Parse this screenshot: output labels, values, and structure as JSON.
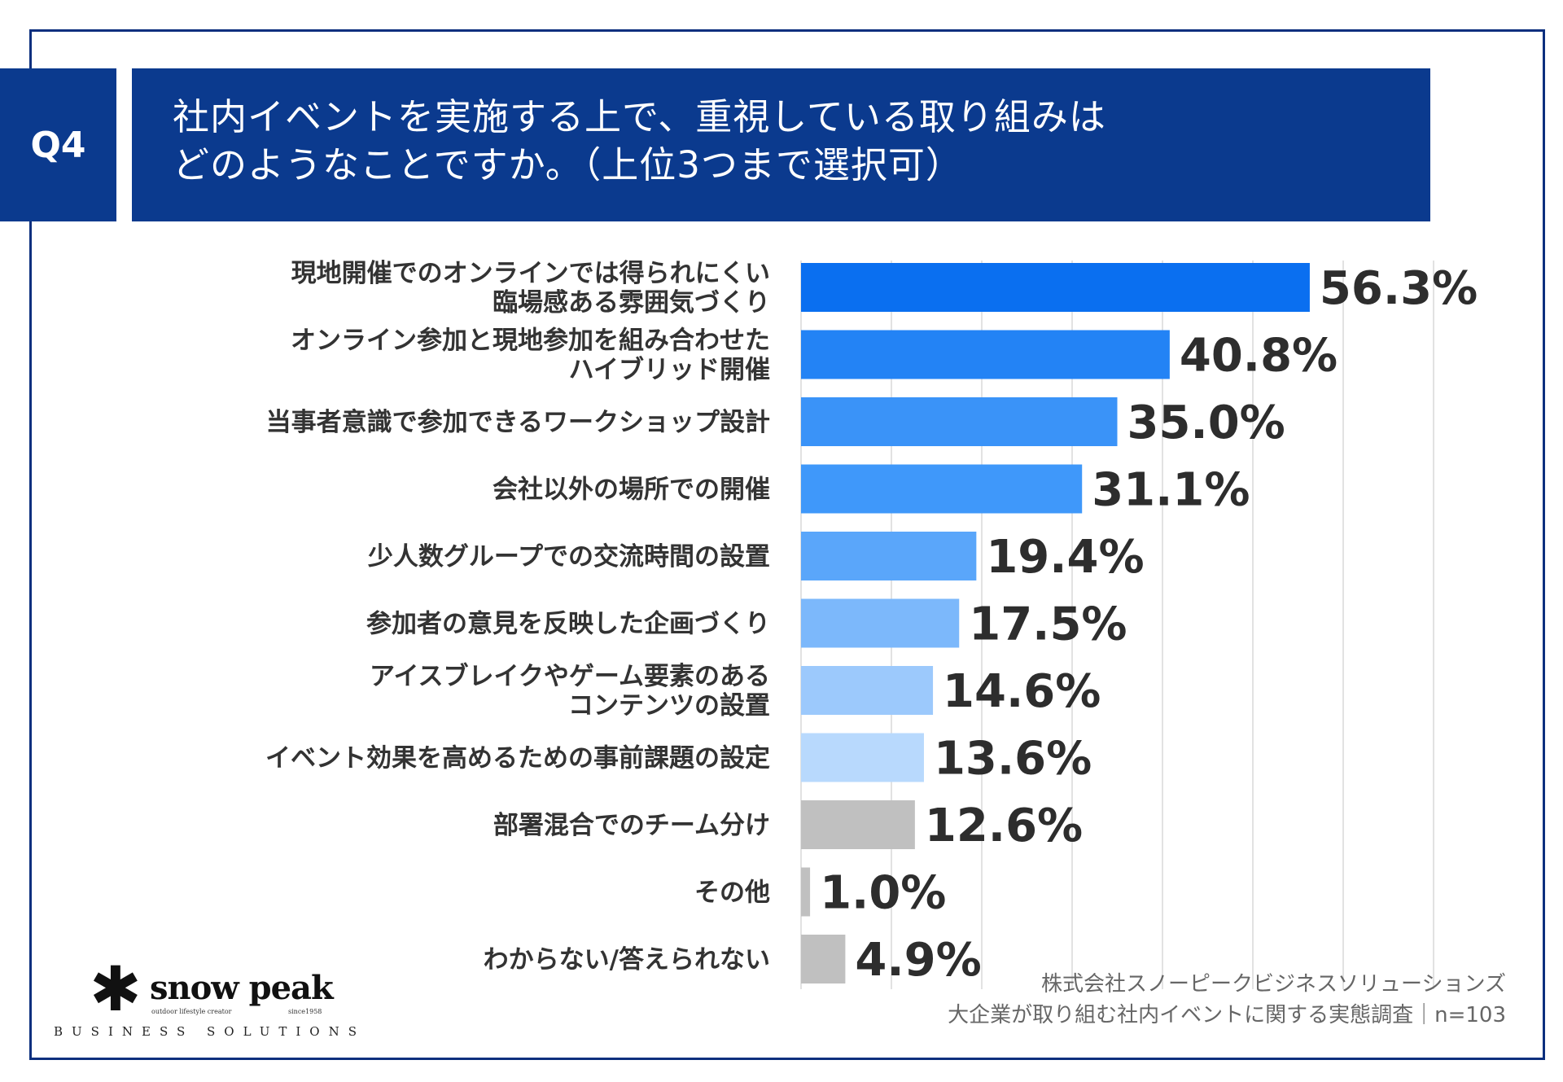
{
  "header": {
    "badge": "Q4",
    "title_line1": "社内イベントを実施する上で、重視している取り組みは",
    "title_line2": "どのようなことですか。（上位3つまで選択可）"
  },
  "chart_data": {
    "type": "bar",
    "orientation": "horizontal",
    "categories": [
      [
        "現地開催でのオンラインでは得られにくい",
        "臨場感ある雰囲気づくり"
      ],
      [
        "オンライン参加と現地参加を組み合わせた",
        "ハイブリッド開催"
      ],
      [
        "当事者意識で参加できるワークショップ設計"
      ],
      [
        "会社以外の場所での開催"
      ],
      [
        "少人数グループでの交流時間の設置"
      ],
      [
        "参加者の意見を反映した企画づくり"
      ],
      [
        "アイスブレイクやゲーム要素のある",
        "コンテンツの設置"
      ],
      [
        "イベント効果を高めるための事前課題の設定"
      ],
      [
        "部署混合でのチーム分け"
      ],
      [
        "その他"
      ],
      [
        "わからない/答えられない"
      ]
    ],
    "values": [
      56.3,
      40.8,
      35.0,
      31.1,
      19.4,
      17.5,
      14.6,
      13.6,
      12.6,
      1.0,
      4.9
    ],
    "value_labels": [
      "56.3%",
      "40.8%",
      "35.0%",
      "31.1%",
      "19.4%",
      "17.5%",
      "14.6%",
      "13.6%",
      "12.6%",
      "1.0%",
      "4.9%"
    ],
    "colors": [
      "#0a6ff0",
      "#2383f5",
      "#3a93f8",
      "#3f98fa",
      "#5aa6fa",
      "#7cb8fb",
      "#9cc9fc",
      "#b8d9fd",
      "#c0c0c0",
      "#c0c0c0",
      "#c0c0c0"
    ],
    "xlim": [
      0,
      70
    ],
    "grid": true
  },
  "footer": {
    "logo_mark": "✱",
    "logo_name": "snow peak",
    "logo_tagline": "outdoor lifestyle creator",
    "logo_since": "since1958",
    "logo_division": "BUSINESS SOLUTIONS",
    "source_line1": "株式会社スノーピークビジネスソリューションズ",
    "source_line2": "大企業が取り組む社内イベントに関する実態調査｜n=103"
  }
}
